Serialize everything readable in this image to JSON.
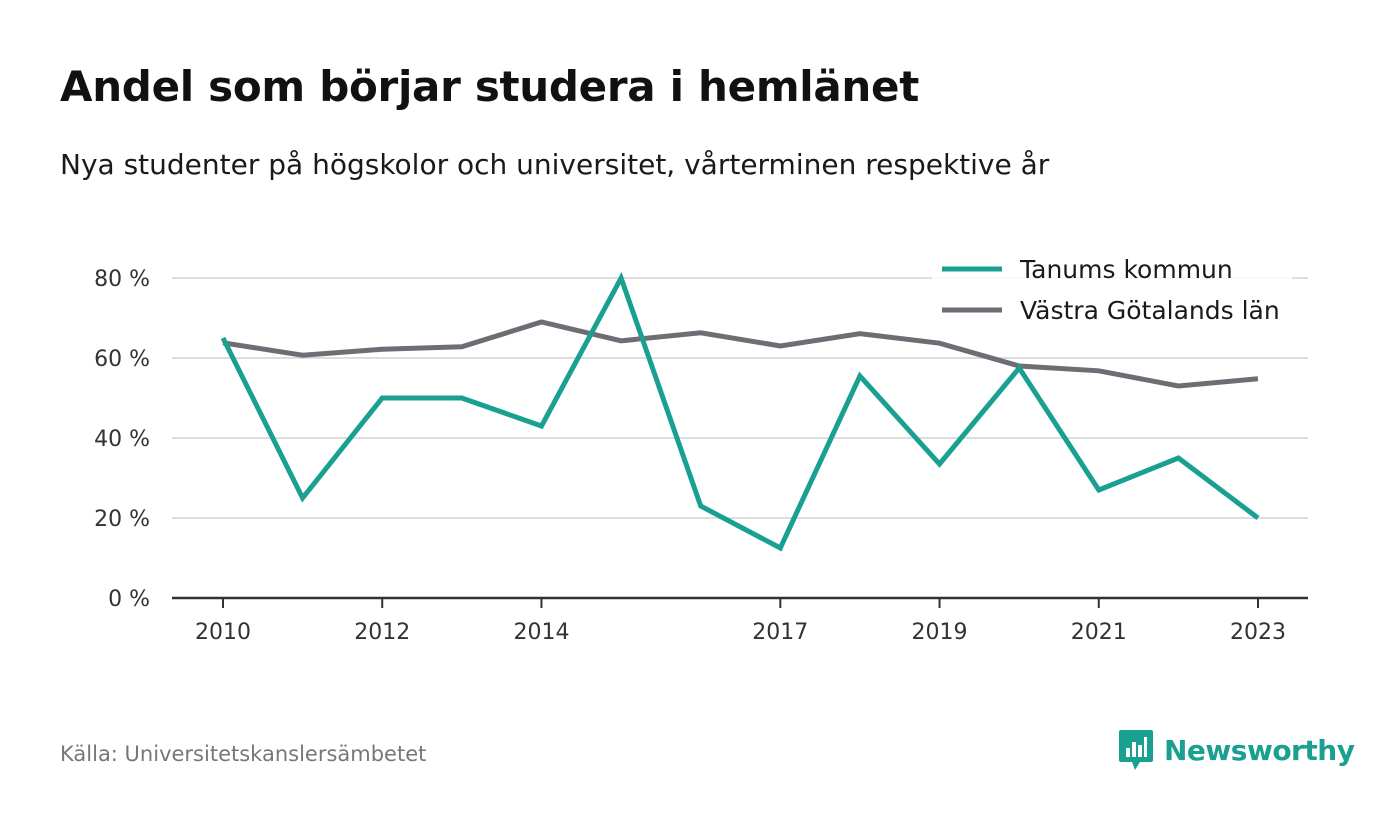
{
  "title": "Andel som börjar studera i hemlänet",
  "subtitle": "Nya studenter på högskolor och universitet, vårterminen respektive år",
  "source": "Källa: Universitetskanslersämbetet",
  "brand": {
    "name": "Newsworthy",
    "icon": "newsworthy-logo-icon"
  },
  "colors": {
    "teal": "#1aa091",
    "gray": "#6e6d74",
    "grid": "#dddddd",
    "axis": "#333333"
  },
  "chart_data": {
    "type": "line",
    "x": [
      2010,
      2011,
      2012,
      2013,
      2014,
      2015,
      2016,
      2017,
      2018,
      2019,
      2020,
      2021,
      2022,
      2023
    ],
    "x_tick_labels": [
      "2010",
      "2012",
      "2014",
      "2017",
      "2019",
      "2021",
      "2023"
    ],
    "y_ticks": [
      0,
      20,
      40,
      60,
      80
    ],
    "y_tick_labels": [
      "0 %",
      "20 %",
      "40 %",
      "60 %",
      "80 %"
    ],
    "ylim": [
      0,
      80
    ],
    "grid": true,
    "legend_position": "top-right",
    "series": [
      {
        "name": "Tanums kommun",
        "color": "#1aa091",
        "values": [
          65,
          25,
          50,
          50,
          43,
          80,
          23,
          12.5,
          55.5,
          33.5,
          57.5,
          27,
          35,
          20
        ]
      },
      {
        "name": "Västra Götalands län",
        "color": "#6e6d74",
        "values": [
          63.8,
          60.7,
          62.2,
          62.8,
          69,
          64.3,
          66.3,
          63,
          66.1,
          63.7,
          58,
          56.8,
          53,
          54.8
        ]
      }
    ]
  }
}
